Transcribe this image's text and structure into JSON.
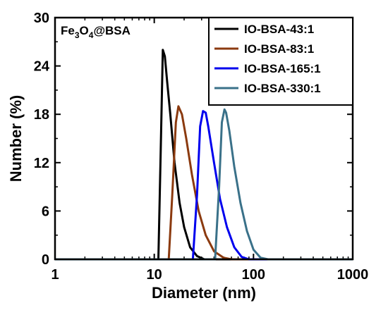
{
  "chart_data": {
    "type": "line",
    "xlabel": "Diameter (nm)",
    "ylabel": "Number (%)",
    "xscale": "log",
    "xlim": [
      1,
      1000
    ],
    "ylim": [
      0,
      30
    ],
    "x_ticks": [
      1,
      10,
      100,
      1000
    ],
    "x_tick_labels": [
      "1",
      "10",
      "100",
      "1000"
    ],
    "y_ticks": [
      0,
      6,
      12,
      18,
      24,
      30
    ],
    "y_tick_labels": [
      "0",
      "6",
      "12",
      "18",
      "24",
      "30"
    ],
    "annotation": {
      "base": "Fe",
      "sub1": "3",
      "mid": "O",
      "sub2": "4",
      "tail": "@BSA"
    },
    "legend_position": "top-right",
    "grid": false,
    "series": [
      {
        "name": "IO-BSA-43:1",
        "color": "#000000",
        "x": [
          1,
          11.0,
          11.6,
          12.2,
          12.8,
          13.5,
          14.5,
          16,
          18,
          20,
          23,
          27,
          32,
          1000
        ],
        "y": [
          0,
          0,
          13,
          26,
          25.2,
          22,
          18,
          12,
          7,
          4,
          1.5,
          0.4,
          0,
          0
        ]
      },
      {
        "name": "IO-BSA-83:1",
        "color": "#8B3A0F",
        "x": [
          1,
          14.0,
          15.2,
          16.5,
          17.5,
          19,
          21,
          24,
          28,
          33,
          40,
          50,
          60,
          1000
        ],
        "y": [
          0,
          0,
          8,
          17,
          19,
          18,
          15,
          10.5,
          6,
          3,
          1,
          0.2,
          0,
          0
        ]
      },
      {
        "name": "IO-BSA-165:1",
        "color": "#0000EE",
        "x": [
          1,
          24.5,
          27,
          29,
          31,
          33,
          35,
          40,
          46,
          54,
          64,
          76,
          90,
          1000
        ],
        "y": [
          0,
          0,
          8,
          16.5,
          18.4,
          18.2,
          16.5,
          12,
          7.5,
          4,
          1.5,
          0.3,
          0,
          0
        ]
      },
      {
        "name": "IO-BSA-330:1",
        "color": "#3A7189",
        "x": [
          1,
          41,
          45,
          48,
          51,
          53,
          57,
          64,
          74,
          86,
          100,
          118,
          140,
          1000
        ],
        "y": [
          0,
          0,
          9,
          17,
          18.6,
          18.2,
          16,
          11.5,
          7,
          3.5,
          1.2,
          0.2,
          0,
          0
        ]
      }
    ]
  }
}
